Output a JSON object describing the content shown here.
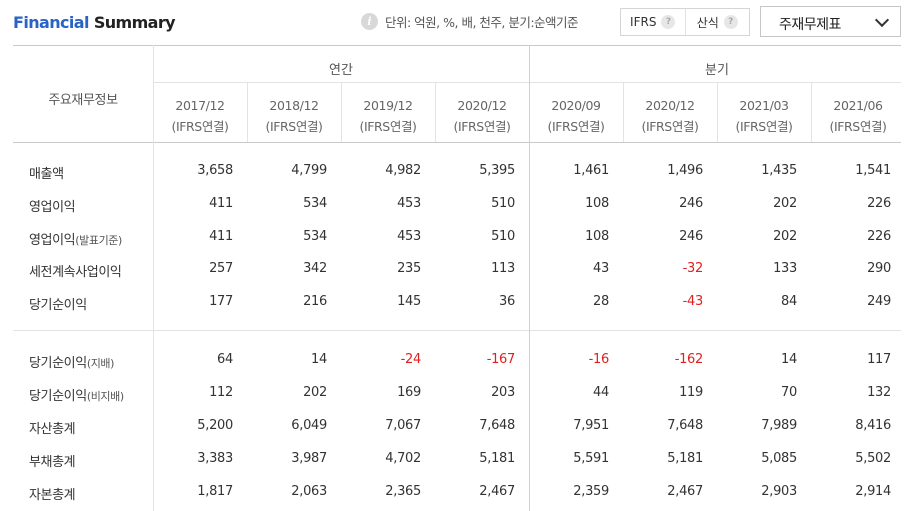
{
  "header": {
    "title_part1": "Financial",
    "title_part2": " Summary",
    "info_icon": "info-circle-icon",
    "unit_text": "단위: 억원, %, 배, 천주, 분기:순액기준",
    "toggle_ifrs": "IFRS",
    "toggle_calc": "산식",
    "help_icon": "question-circle-icon",
    "select_value": "주재무제표",
    "select_icon": "chevron-down-icon"
  },
  "table": {
    "row_header_label": "주요재무정보",
    "group_annual": "연간",
    "group_quarter": "분기",
    "columns": [
      {
        "period": "2017/12",
        "basis": "(IFRS연결)"
      },
      {
        "period": "2018/12",
        "basis": "(IFRS연결)"
      },
      {
        "period": "2019/12",
        "basis": "(IFRS연결)"
      },
      {
        "period": "2020/12",
        "basis": "(IFRS연결)"
      },
      {
        "period": "2020/09",
        "basis": "(IFRS연결)"
      },
      {
        "period": "2020/12",
        "basis": "(IFRS연결)"
      },
      {
        "period": "2021/03",
        "basis": "(IFRS연결)"
      },
      {
        "period": "2021/06",
        "basis": "(IFRS연결)"
      }
    ],
    "rows": [
      {
        "label": "매출액",
        "sub": "",
        "values": [
          "3,658",
          "4,799",
          "4,982",
          "5,395",
          "1,461",
          "1,496",
          "1,435",
          "1,541"
        ]
      },
      {
        "label": "영업이익",
        "sub": "",
        "values": [
          "411",
          "534",
          "453",
          "510",
          "108",
          "246",
          "202",
          "226"
        ]
      },
      {
        "label": "영업이익",
        "sub": "(발표기준)",
        "values": [
          "411",
          "534",
          "453",
          "510",
          "108",
          "246",
          "202",
          "226"
        ]
      },
      {
        "label": "세전계속사업이익",
        "sub": "",
        "values": [
          "257",
          "342",
          "235",
          "113",
          "43",
          "-32",
          "133",
          "290"
        ]
      },
      {
        "label": "당기순이익",
        "sub": "",
        "values": [
          "177",
          "216",
          "145",
          "36",
          "28",
          "-43",
          "84",
          "249"
        ]
      },
      {
        "label": "당기순이익",
        "sub": "(지배)",
        "values": [
          "64",
          "14",
          "-24",
          "-167",
          "-16",
          "-162",
          "14",
          "117"
        ]
      },
      {
        "label": "당기순이익",
        "sub": "(비지배)",
        "values": [
          "112",
          "202",
          "169",
          "203",
          "44",
          "119",
          "70",
          "132"
        ]
      },
      {
        "label": "자산총계",
        "sub": "",
        "values": [
          "5,200",
          "6,049",
          "7,067",
          "7,648",
          "7,951",
          "7,648",
          "7,989",
          "8,416"
        ]
      },
      {
        "label": "부채총계",
        "sub": "",
        "values": [
          "3,383",
          "3,987",
          "4,702",
          "5,181",
          "5,591",
          "5,181",
          "5,085",
          "5,502"
        ]
      },
      {
        "label": "자본총계",
        "sub": "",
        "values": [
          "1,817",
          "2,063",
          "2,365",
          "2,467",
          "2,359",
          "2,467",
          "2,903",
          "2,914"
        ]
      }
    ]
  }
}
